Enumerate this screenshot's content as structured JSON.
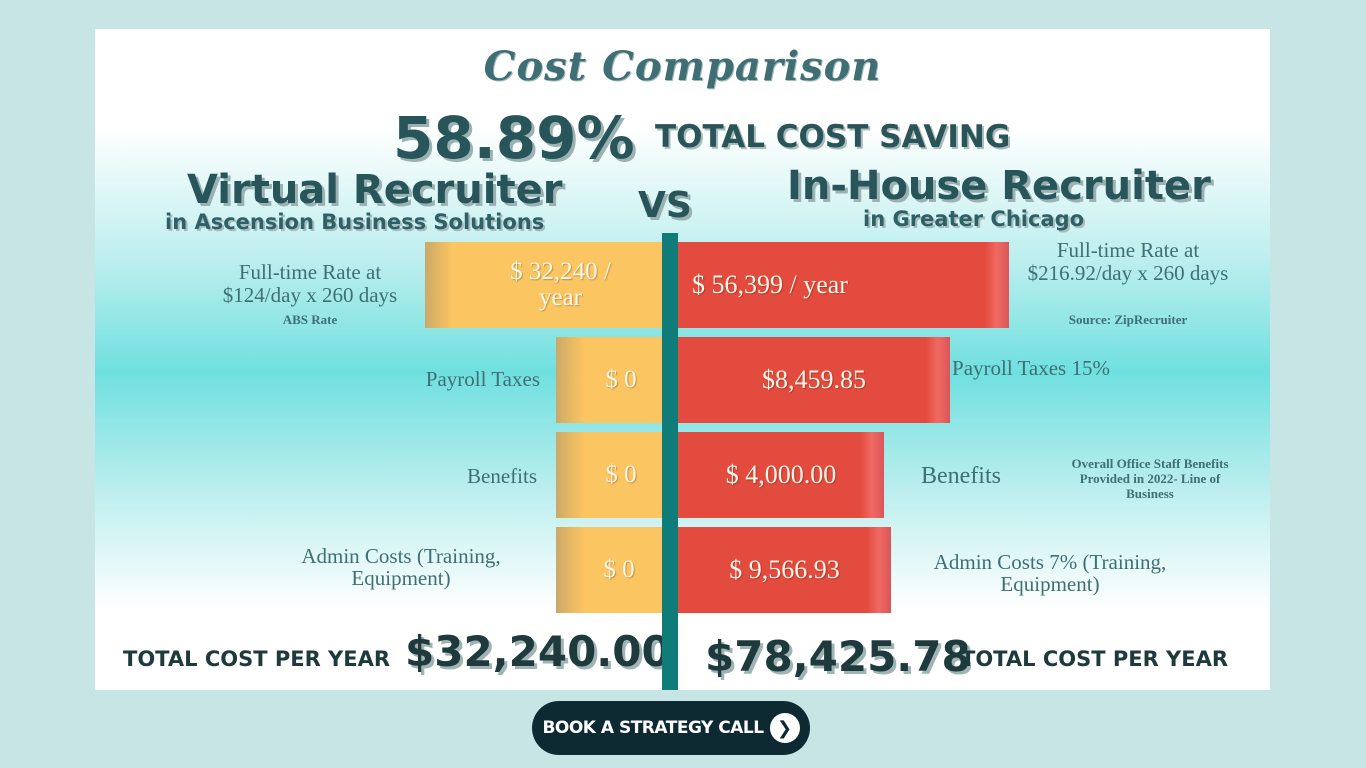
{
  "title": "Cost Comparison",
  "saving_pct": "58.89%",
  "saving_label": "TOTAL COST SAVING",
  "vs": "VS",
  "left": {
    "heading": "Virtual Recruiter",
    "subheading": "in Ascension Business Solutions",
    "rate_label": "Full-time Rate at $124/day x 260 days",
    "rate_note": "ABS Rate",
    "payroll_label": "Payroll Taxes",
    "benefits_label": "Benefits",
    "admin_label": "Admin Costs (Training, Equipment)",
    "bars": [
      "$ 32,240 / year",
      "$ 0",
      "$ 0",
      "$ 0"
    ],
    "total_label": "TOTAL COST PER YEAR",
    "total_value": "$32,240.00"
  },
  "right": {
    "heading": "In-House Recruiter",
    "subheading": "in Greater Chicago",
    "rate_label": "Full-time Rate at $216.92/day x 260 days",
    "rate_note": "Source: ZipRecruiter",
    "payroll_label": "Payroll Taxes 15%",
    "benefits_label": "Benefits",
    "benefits_note": "Overall Office Staff Benefits Provided in 2022- Line of Business",
    "admin_label": "Admin Costs 7% (Training, Equipment)",
    "bars": [
      "$ 56,399 / year",
      "$8,459.85",
      "$ 4,000.00",
      "$ 9,566.93"
    ],
    "total_label": "TOTAL COST PER YEAR",
    "total_value": "$78,425.78"
  },
  "cta": {
    "label": "BOOK A STRATEGY CALL",
    "icon": "chevron-right-icon"
  },
  "colors": {
    "yellow": "#fbc562",
    "red": "#e44b3f",
    "teal": "#0f7c79",
    "dark": "#0d2a33"
  }
}
